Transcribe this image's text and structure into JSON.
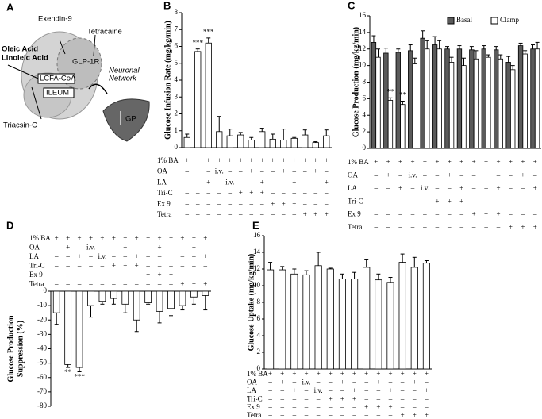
{
  "diagram": {
    "panel_label": "A",
    "texts": {
      "exendin": "Exendin-9",
      "tetracaine": "Tetracaine",
      "oleic": "Oleic Acid",
      "linoleic": "Linoleic Acid",
      "glp1r": "GLP-1R",
      "neuronal1": "Neuronal",
      "neuronal2": "Network",
      "lcfa": "LCFA-CoA",
      "ileum": "ILEUM",
      "gp": "GP",
      "triacsin": "Triacsin-C"
    }
  },
  "chart_data": [
    {
      "type": "bar",
      "panel_label": "B",
      "y_label": "Glucose Infusion Rate (mg/kg/min)",
      "ylim": [
        0,
        8
      ],
      "yticks": [
        0,
        1,
        2,
        3,
        4,
        5,
        6,
        7,
        8
      ],
      "grid": false,
      "color": "#ffffff",
      "values": [
        0.6,
        5.7,
        6.2,
        0.95,
        0.7,
        0.75,
        0.45,
        0.95,
        0.5,
        0.45,
        0.55,
        0.75,
        0.3,
        0.7
      ],
      "errors": [
        0.2,
        0.15,
        0.3,
        0.9,
        0.4,
        0.15,
        0.15,
        0.2,
        0.3,
        0.65,
        0.05,
        0.3,
        0.05,
        0.35
      ],
      "significance": [
        null,
        "***",
        "***",
        null,
        null,
        null,
        null,
        null,
        null,
        null,
        null,
        null,
        null,
        null
      ],
      "conditions": [
        {
          "label": "1% BA",
          "cells": [
            "+",
            "+",
            "+",
            "+",
            "+",
            "+",
            "+",
            "+",
            "+",
            "+",
            "+",
            "+",
            "+",
            "+"
          ]
        },
        {
          "label": "OA",
          "cells": [
            "–",
            "+",
            "–",
            "i.v.",
            "–",
            "–",
            "+",
            "–",
            "–",
            "+",
            "–",
            "–",
            "+",
            "–"
          ]
        },
        {
          "label": "LA",
          "cells": [
            "–",
            "–",
            "+",
            "–",
            "i.v.",
            "–",
            "–",
            "+",
            "–",
            "–",
            "+",
            "–",
            "–",
            "+"
          ]
        },
        {
          "label": "Tri-C",
          "cells": [
            "–",
            "–",
            "–",
            "–",
            "–",
            "+",
            "+",
            "+",
            "–",
            "–",
            "–",
            "–",
            "–",
            "–"
          ]
        },
        {
          "label": "Ex 9",
          "cells": [
            "–",
            "–",
            "–",
            "–",
            "–",
            "–",
            "–",
            "–",
            "+",
            "+",
            "+",
            "–",
            "–",
            "–"
          ]
        },
        {
          "label": "Tetra",
          "cells": [
            "–",
            "–",
            "–",
            "–",
            "–",
            "–",
            "–",
            "–",
            "–",
            "–",
            "–",
            "+",
            "+",
            "+"
          ]
        }
      ]
    },
    {
      "type": "grouped-bar",
      "panel_label": "C",
      "y_label": "Glucose Production (mg/kg/min)",
      "ylim": [
        0,
        16
      ],
      "yticks": [
        0,
        2,
        4,
        6,
        8,
        10,
        12,
        14,
        16
      ],
      "grid": false,
      "legend": "top-right",
      "series": [
        {
          "name": "Basal",
          "color": "#5a5a5a",
          "values": [
            12.8,
            11.5,
            11.6,
            11.8,
            13.3,
            12.5,
            12.0,
            12.0,
            11.9,
            12.0,
            11.9,
            10.4,
            12.4,
            12.0
          ],
          "errors": [
            0.8,
            0.6,
            0.4,
            0.7,
            0.9,
            1.0,
            0.3,
            0.4,
            0.4,
            0.4,
            0.4,
            0.7,
            0.3,
            0.5
          ],
          "significance": [
            null,
            null,
            null,
            null,
            null,
            null,
            null,
            null,
            null,
            null,
            null,
            null,
            null,
            null
          ]
        },
        {
          "name": "Clamp",
          "color": "#ffffff",
          "values": [
            11.0,
            5.8,
            5.3,
            10.2,
            12.0,
            12.0,
            10.4,
            10.0,
            10.8,
            11.0,
            10.8,
            9.5,
            11.4,
            12.0
          ],
          "errors": [
            1.0,
            0.3,
            0.4,
            0.7,
            1.0,
            1.0,
            0.6,
            0.9,
            1.0,
            0.3,
            0.5,
            0.5,
            0.4,
            0.8
          ],
          "significance": [
            null,
            "**",
            "**",
            null,
            null,
            null,
            null,
            null,
            null,
            null,
            null,
            null,
            null,
            null
          ]
        }
      ],
      "conditions": [
        {
          "label": "1% BA",
          "cells": [
            "+",
            "+",
            "+",
            "+",
            "+",
            "+",
            "+",
            "+",
            "+",
            "+",
            "+",
            "+",
            "+",
            "+"
          ]
        },
        {
          "label": "OA",
          "cells": [
            "–",
            "+",
            "–",
            "i.v.",
            "–",
            "–",
            "+",
            "–",
            "–",
            "+",
            "–",
            "–",
            "+",
            "–"
          ]
        },
        {
          "label": "LA",
          "cells": [
            "–",
            "–",
            "+",
            "–",
            "i.v.",
            "–",
            "–",
            "+",
            "–",
            "–",
            "+",
            "–",
            "–",
            "+"
          ]
        },
        {
          "label": "Tri-C",
          "cells": [
            "–",
            "–",
            "–",
            "–",
            "–",
            "+",
            "+",
            "+",
            "–",
            "–",
            "–",
            "–",
            "–",
            "–"
          ]
        },
        {
          "label": "Ex 9",
          "cells": [
            "–",
            "–",
            "–",
            "–",
            "–",
            "–",
            "–",
            "–",
            "+",
            "+",
            "+",
            "–",
            "–",
            "–"
          ]
        },
        {
          "label": "Tetra",
          "cells": [
            "–",
            "–",
            "–",
            "–",
            "–",
            "–",
            "–",
            "–",
            "–",
            "–",
            "–",
            "+",
            "+",
            "+"
          ]
        }
      ]
    },
    {
      "type": "bar",
      "panel_label": "D",
      "y_label": [
        "Glucose Production",
        "Suppression (%)"
      ],
      "ylim": [
        -80,
        0
      ],
      "yticks": [
        0,
        -10,
        -20,
        -30,
        -40,
        -50,
        -60,
        -70,
        -80
      ],
      "grid": false,
      "color": "#ffffff",
      "values": [
        -15,
        -51,
        -53,
        -10,
        -7,
        -5,
        -9,
        -20,
        -8,
        -14,
        -12,
        -10,
        -4,
        -3
      ],
      "errors": [
        8,
        2,
        3,
        8,
        2,
        4,
        6,
        8,
        1,
        8,
        5,
        3,
        5,
        10
      ],
      "significance": [
        null,
        "**",
        "***",
        null,
        null,
        null,
        null,
        null,
        null,
        null,
        null,
        null,
        null,
        null
      ],
      "conditions": [
        {
          "label": "1% BA",
          "cells": [
            "+",
            "+",
            "+",
            "+",
            "+",
            "+",
            "+",
            "+",
            "+",
            "+",
            "+",
            "+",
            "+",
            "+"
          ]
        },
        {
          "label": "OA",
          "cells": [
            "–",
            "+",
            "–",
            "i.v.",
            "–",
            "–",
            "+",
            "–",
            "–",
            "+",
            "–",
            "–",
            "+",
            "–"
          ]
        },
        {
          "label": "LA",
          "cells": [
            "–",
            "–",
            "+",
            "–",
            "i.v.",
            "–",
            "–",
            "+",
            "–",
            "–",
            "+",
            "–",
            "–",
            "+"
          ]
        },
        {
          "label": "Tri-C",
          "cells": [
            "–",
            "–",
            "–",
            "–",
            "–",
            "+",
            "+",
            "+",
            "–",
            "–",
            "–",
            "–",
            "–",
            "–"
          ]
        },
        {
          "label": "Ex 9",
          "cells": [
            "–",
            "–",
            "–",
            "–",
            "–",
            "–",
            "–",
            "–",
            "+",
            "+",
            "+",
            "–",
            "–",
            "–"
          ]
        },
        {
          "label": "Tetra",
          "cells": [
            "–",
            "–",
            "–",
            "–",
            "–",
            "–",
            "–",
            "–",
            "–",
            "–",
            "–",
            "+",
            "+",
            "+"
          ]
        }
      ]
    },
    {
      "type": "bar",
      "panel_label": "E",
      "y_label": "Glucose Uptake (mg/kg/min)",
      "ylim": [
        0,
        16
      ],
      "yticks": [
        0,
        2,
        4,
        6,
        8,
        10,
        12,
        14,
        16
      ],
      "grid": false,
      "color": "#ffffff",
      "values": [
        11.9,
        11.9,
        11.4,
        11.3,
        12.4,
        12.0,
        10.8,
        10.8,
        12.2,
        10.7,
        10.4,
        12.8,
        12.2,
        12.7
      ],
      "errors": [
        0.9,
        0.4,
        0.6,
        0.5,
        1.6,
        0.1,
        0.6,
        0.8,
        0.9,
        0.7,
        0.6,
        1.0,
        1.2,
        0.3
      ],
      "significance": [
        null,
        null,
        null,
        null,
        null,
        null,
        null,
        null,
        null,
        null,
        null,
        null,
        null,
        null
      ],
      "conditions": [
        {
          "label": "1% BA",
          "cells": [
            "+",
            "+",
            "+",
            "+",
            "+",
            "+",
            "+",
            "+",
            "+",
            "+",
            "+",
            "+",
            "+",
            "+"
          ]
        },
        {
          "label": "OA",
          "cells": [
            "–",
            "+",
            "–",
            "i.v.",
            "–",
            "–",
            "+",
            "–",
            "–",
            "+",
            "–",
            "–",
            "+",
            "–"
          ]
        },
        {
          "label": "LA",
          "cells": [
            "–",
            "–",
            "+",
            "–",
            "i.v.",
            "–",
            "–",
            "+",
            "–",
            "–",
            "+",
            "–",
            "–",
            "+"
          ]
        },
        {
          "label": "Tri-C",
          "cells": [
            "–",
            "–",
            "–",
            "–",
            "–",
            "+",
            "+",
            "+",
            "–",
            "–",
            "–",
            "–",
            "–",
            "–"
          ]
        },
        {
          "label": "Ex 9",
          "cells": [
            "–",
            "–",
            "–",
            "–",
            "–",
            "–",
            "–",
            "–",
            "+",
            "+",
            "+",
            "–",
            "–",
            "–"
          ]
        },
        {
          "label": "Tetra",
          "cells": [
            "–",
            "–",
            "–",
            "–",
            "–",
            "–",
            "–",
            "–",
            "–",
            "–",
            "–",
            "+",
            "+",
            "+"
          ]
        }
      ]
    }
  ]
}
